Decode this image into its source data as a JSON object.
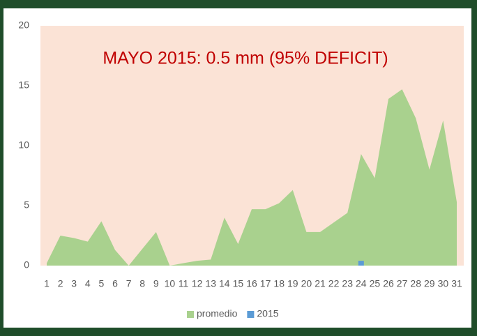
{
  "chart_data": {
    "type": "area",
    "title": "MAYO 2015: 0.5 mm (95% DEFICIT)",
    "categories": [
      "1",
      "2",
      "3",
      "4",
      "5",
      "6",
      "7",
      "8",
      "9",
      "10",
      "11",
      "12",
      "13",
      "14",
      "15",
      "16",
      "17",
      "18",
      "19",
      "20",
      "21",
      "22",
      "23",
      "24",
      "25",
      "26",
      "27",
      "28",
      "29",
      "30",
      "31"
    ],
    "series": [
      {
        "name": "promedio",
        "type": "area",
        "color": "#a9d18e",
        "values": [
          0.2,
          2.5,
          2.3,
          2.0,
          3.7,
          1.3,
          0,
          1.4,
          2.8,
          0,
          0.2,
          0.4,
          0.5,
          4.0,
          1.8,
          4.7,
          4.7,
          5.2,
          6.3,
          2.8,
          2.8,
          3.6,
          4.4,
          9.3,
          7.3,
          13.9,
          14.7,
          12.3,
          8.0,
          12.1,
          5.3
        ]
      },
      {
        "name": "2015",
        "type": "bar",
        "color": "#5b9bd5",
        "values": [
          null,
          null,
          null,
          null,
          null,
          null,
          null,
          null,
          null,
          null,
          null,
          null,
          null,
          null,
          null,
          null,
          null,
          null,
          null,
          null,
          null,
          null,
          null,
          0.4,
          null,
          null,
          null,
          null,
          null,
          null,
          null
        ]
      }
    ],
    "ylim": [
      0,
      20
    ],
    "yticks": [
      0,
      5,
      10,
      15,
      20
    ],
    "grid": false,
    "plot_background": "#fbe3d6",
    "title_color": "#c00000",
    "legend": "bottom"
  }
}
